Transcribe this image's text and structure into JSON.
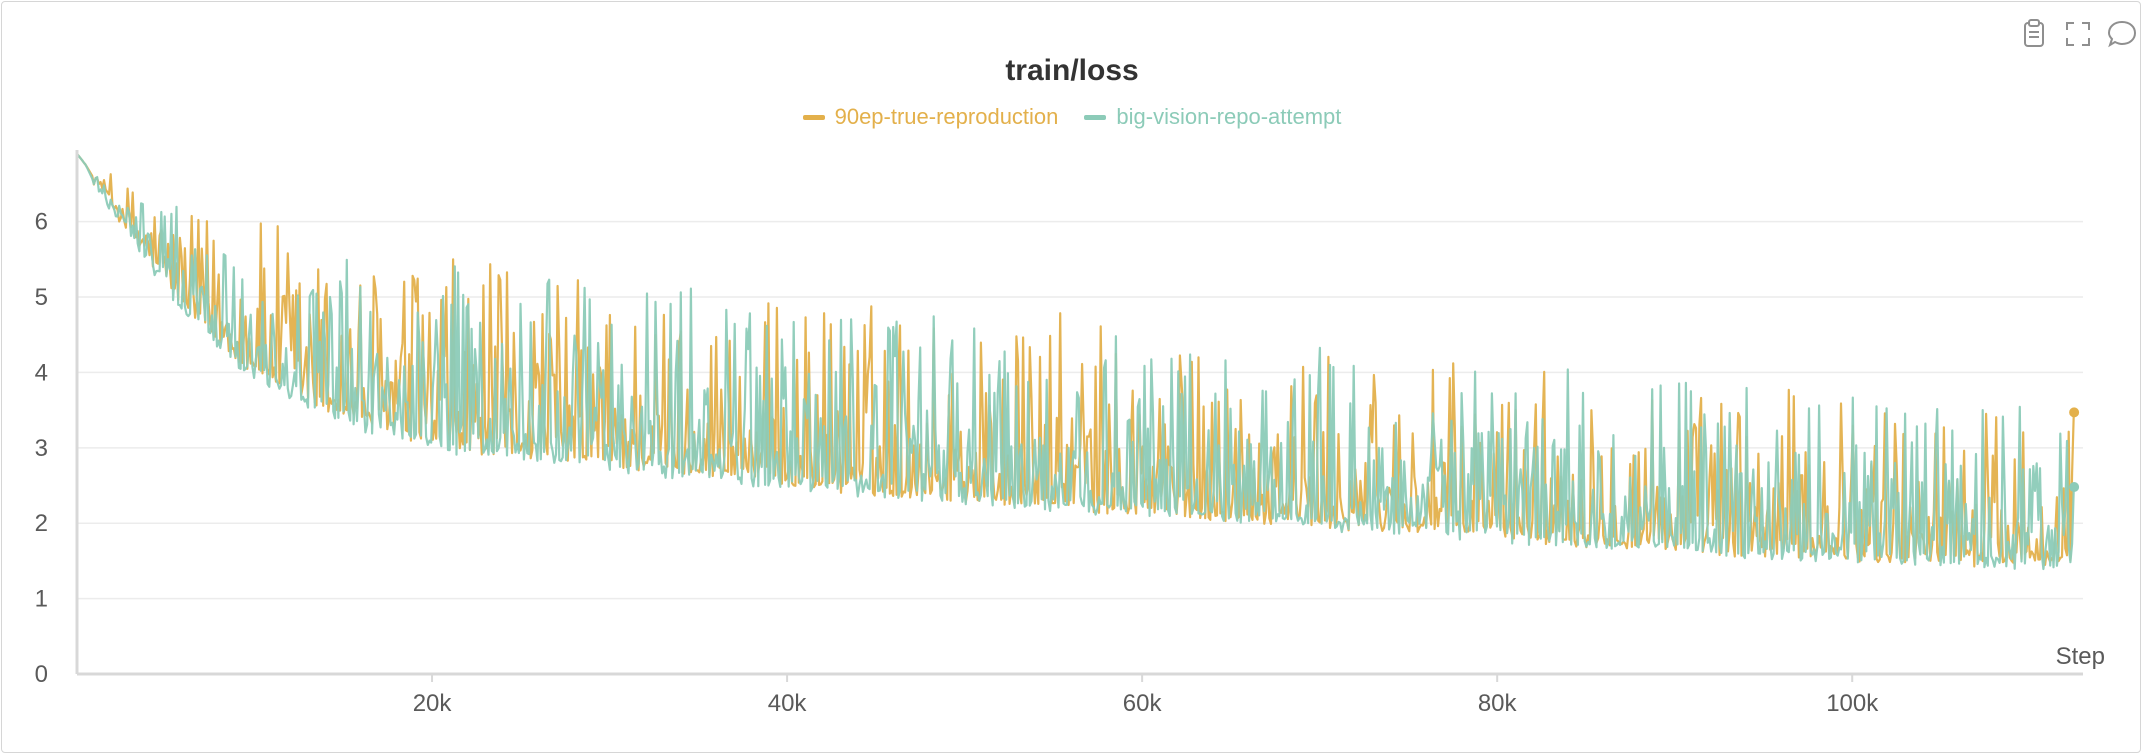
{
  "toolbar": {
    "icons": [
      "clipboard-icon",
      "fullscreen-icon",
      "comment-icon"
    ]
  },
  "colors": {
    "series_a": "#e3b04b",
    "series_b": "#8ccbb8",
    "grid": "#ececec",
    "axis": "#d8d8d8"
  },
  "chart_data": {
    "type": "line",
    "title": "train/loss",
    "xlabel": "Step",
    "ylabel": "",
    "xlim": [
      0,
      113000
    ],
    "ylim": [
      0,
      6.95
    ],
    "grid": true,
    "legend_position": "top-center",
    "x_ticks": [
      {
        "value": 20000,
        "label": "20k"
      },
      {
        "value": 40000,
        "label": "40k"
      },
      {
        "value": 60000,
        "label": "60k"
      },
      {
        "value": 80000,
        "label": "80k"
      },
      {
        "value": 100000,
        "label": "100k"
      }
    ],
    "y_ticks": [
      {
        "value": 0,
        "label": "0"
      },
      {
        "value": 1,
        "label": "1"
      },
      {
        "value": 2,
        "label": "2"
      },
      {
        "value": 3,
        "label": "3"
      },
      {
        "value": 4,
        "label": "4"
      },
      {
        "value": 5,
        "label": "5"
      },
      {
        "value": 6,
        "label": "6"
      }
    ],
    "series": [
      {
        "name": "90ep-true-reproduction",
        "x": [
          0,
          500,
          1000,
          2000,
          3000,
          4000,
          5000,
          6000,
          7000,
          8000,
          9000,
          10000,
          12000,
          14000,
          16000,
          18000,
          20000,
          22000,
          24000,
          26000,
          28000,
          30000,
          32000,
          34000,
          36000,
          38000,
          40000,
          42000,
          44000,
          46000,
          48000,
          50000,
          52000,
          54000,
          56000,
          58000,
          60000,
          62000,
          64000,
          66000,
          68000,
          70000,
          72000,
          74000,
          76000,
          78000,
          80000,
          82000,
          84000,
          86000,
          88000,
          90000,
          92000,
          94000,
          96000,
          98000,
          100000,
          102000,
          104000,
          106000,
          108000,
          110000,
          112500
        ],
        "base": [
          6.9,
          6.75,
          6.55,
          6.2,
          5.85,
          5.5,
          5.2,
          4.9,
          4.65,
          4.4,
          4.2,
          4.05,
          3.75,
          3.55,
          3.35,
          3.2,
          3.1,
          3.0,
          2.95,
          2.9,
          2.85,
          2.8,
          2.75,
          2.7,
          2.65,
          2.6,
          2.55,
          2.5,
          2.45,
          2.42,
          2.38,
          2.35,
          2.3,
          2.27,
          2.24,
          2.2,
          2.17,
          2.14,
          2.1,
          2.07,
          2.04,
          2.0,
          1.97,
          1.94,
          1.9,
          1.87,
          1.84,
          1.8,
          1.77,
          1.74,
          1.71,
          1.68,
          1.65,
          1.62,
          1.6,
          1.58,
          1.56,
          1.54,
          1.52,
          1.5,
          1.49,
          1.48,
          1.47
        ],
        "peak": [
          6.9,
          6.85,
          6.7,
          6.6,
          6.5,
          6.4,
          6.3,
          6.2,
          6.1,
          6.0,
          6.1,
          6.15,
          5.9,
          5.7,
          5.6,
          5.5,
          5.6,
          5.5,
          5.4,
          5.55,
          5.3,
          5.2,
          5.25,
          5.1,
          5.2,
          5.0,
          4.9,
          5.0,
          5.1,
          4.9,
          4.85,
          4.8,
          4.75,
          4.7,
          4.8,
          4.6,
          4.5,
          4.4,
          4.45,
          4.3,
          4.4,
          4.2,
          4.1,
          4.15,
          4.2,
          4.0,
          3.9,
          4.15,
          4.1,
          4.2,
          4.15,
          3.9,
          3.8,
          3.85,
          3.7,
          3.9,
          3.75,
          3.7,
          3.65,
          3.6,
          3.65,
          3.55,
          3.5
        ],
        "last": 3.47
      },
      {
        "name": "big-vision-repo-attempt",
        "x": [
          0,
          500,
          1000,
          2000,
          3000,
          4000,
          5000,
          6000,
          7000,
          8000,
          9000,
          10000,
          12000,
          14000,
          16000,
          18000,
          20000,
          22000,
          24000,
          26000,
          28000,
          30000,
          32000,
          34000,
          36000,
          38000,
          40000,
          42000,
          44000,
          46000,
          48000,
          50000,
          52000,
          54000,
          56000,
          58000,
          60000,
          62000,
          64000,
          66000,
          68000,
          70000,
          72000,
          74000,
          76000,
          78000,
          80000,
          82000,
          84000,
          86000,
          88000,
          90000,
          92000,
          94000,
          96000,
          98000,
          100000,
          102000,
          104000,
          106000,
          108000,
          110000,
          112500
        ],
        "base": [
          6.9,
          6.75,
          6.5,
          6.15,
          5.8,
          5.45,
          5.15,
          4.85,
          4.6,
          4.35,
          4.15,
          4.0,
          3.7,
          3.5,
          3.3,
          3.15,
          3.05,
          2.95,
          2.9,
          2.85,
          2.8,
          2.75,
          2.7,
          2.65,
          2.6,
          2.55,
          2.5,
          2.47,
          2.43,
          2.4,
          2.36,
          2.32,
          2.28,
          2.25,
          2.22,
          2.18,
          2.15,
          2.12,
          2.08,
          2.05,
          2.02,
          1.98,
          1.95,
          1.92,
          1.88,
          1.85,
          1.82,
          1.78,
          1.75,
          1.72,
          1.69,
          1.66,
          1.63,
          1.6,
          1.58,
          1.56,
          1.54,
          1.52,
          1.5,
          1.48,
          1.47,
          1.46,
          1.45
        ],
        "peak": [
          6.9,
          6.85,
          6.7,
          6.6,
          6.5,
          6.45,
          6.35,
          6.2,
          6.1,
          5.9,
          5.8,
          5.7,
          5.6,
          5.65,
          5.5,
          5.4,
          5.5,
          5.45,
          5.3,
          5.4,
          5.2,
          5.25,
          5.1,
          5.2,
          5.15,
          5.0,
          4.95,
          4.9,
          4.85,
          4.9,
          4.8,
          4.7,
          4.75,
          4.6,
          4.55,
          4.5,
          4.45,
          4.5,
          4.4,
          4.35,
          4.3,
          4.25,
          4.2,
          4.25,
          4.1,
          4.05,
          4.1,
          4.15,
          4.1,
          4.05,
          4.0,
          3.95,
          3.85,
          3.9,
          3.8,
          3.75,
          3.8,
          3.7,
          3.65,
          3.6,
          3.7,
          3.6,
          3.55
        ],
        "last": 2.48
      }
    ]
  }
}
